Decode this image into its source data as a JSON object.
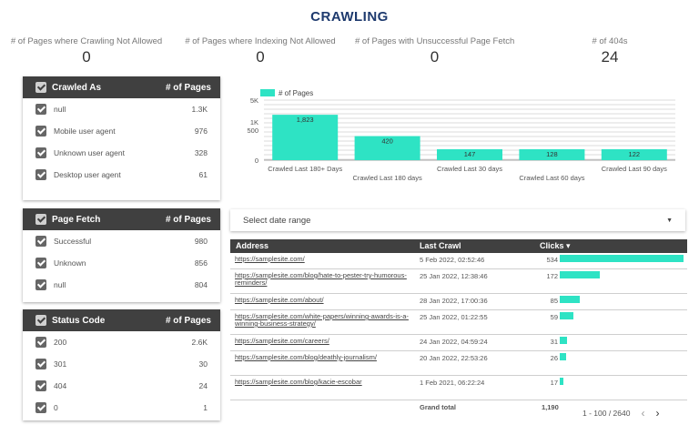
{
  "page": {
    "title": "CRAWLING"
  },
  "kpis": [
    {
      "label": "# of Pages where Crawling Not Allowed",
      "value": "0"
    },
    {
      "label": "# of Pages where Indexing Not Allowed",
      "value": "0"
    },
    {
      "label": "# of Pages with Unsuccessful Page Fetch",
      "value": "0"
    },
    {
      "label": "# of 404s",
      "value": "24"
    }
  ],
  "crawled_as": {
    "title": "Crawled As",
    "count_header": "# of Pages",
    "items": [
      {
        "label": "null",
        "count": "1.3K"
      },
      {
        "label": "Mobile user agent",
        "count": "976"
      },
      {
        "label": "Unknown user agent",
        "count": "328"
      },
      {
        "label": "Desktop user agent",
        "count": "61"
      }
    ]
  },
  "page_fetch": {
    "title": "Page Fetch",
    "count_header": "# of Pages",
    "items": [
      {
        "label": "Successful",
        "count": "980"
      },
      {
        "label": "Unknown",
        "count": "856"
      },
      {
        "label": "null",
        "count": "804"
      }
    ]
  },
  "status_code": {
    "title": "Status Code",
    "count_header": "# of Pages",
    "items": [
      {
        "label": "200",
        "count": "2.6K"
      },
      {
        "label": "301",
        "count": "30"
      },
      {
        "label": "404",
        "count": "24"
      },
      {
        "label": "0",
        "count": "1"
      }
    ]
  },
  "chart_data": {
    "type": "bar",
    "series": [
      {
        "name": "# of Pages",
        "values": [
          1823,
          420,
          147,
          128,
          122
        ]
      }
    ],
    "categories": [
      "Crawled Last 180+ Days",
      "Crawled Last 180 days",
      "Crawled Last 30 days",
      "Crawled Last 60 days",
      "Crawled Last 90 days"
    ],
    "data_labels": [
      "1,823",
      "420",
      "147",
      "128",
      "122"
    ],
    "y_ticks": [
      "5K",
      "1K",
      "500",
      "0"
    ],
    "color": "#2ee3c4",
    "legend": "top-left",
    "grid": true
  },
  "date_range": {
    "label": "Select date range"
  },
  "table": {
    "headers": {
      "address": "Address",
      "last_crawl": "Last Crawl",
      "clicks": "Clicks ▾"
    },
    "rows": [
      {
        "address": "https://samplesite.com/",
        "last_crawl": "5 Feb 2022, 02:52:46",
        "clicks": "534",
        "value": 534
      },
      {
        "address": "https://samplesite.com/blog/hate-to-pester-try-humorous-reminders/",
        "last_crawl": "25 Jan 2022, 12:38:46",
        "clicks": "172",
        "value": 172
      },
      {
        "address": "https://samplesite.com/about/",
        "last_crawl": "28 Jan 2022, 17:00:36",
        "clicks": "85",
        "value": 85
      },
      {
        "address": "https://samplesite.com/white-papers/winning-awards-is-a-winning-business-strategy/",
        "last_crawl": "25 Jan 2022, 01:22:55",
        "clicks": "59",
        "value": 59
      },
      {
        "address": "https://samplesite.com/careers/",
        "last_crawl": "24 Jan 2022, 04:59:24",
        "clicks": "31",
        "value": 31
      },
      {
        "address": "https://samplesite.com/blog/deathly-journalism/",
        "last_crawl": "20 Jan 2022, 22:53:26",
        "clicks": "26",
        "value": 26
      },
      {
        "address": "https://samplesite.com/blog/kacie-escobar",
        "last_crawl": "1 Feb 2021, 06:22:24",
        "clicks": "17",
        "value": 17
      }
    ],
    "grand_total_label": "Grand total",
    "grand_total": "1,190",
    "bar_color": "#2ee3c4"
  },
  "pager": {
    "range": "1 - 100 / 2640",
    "prev": "‹",
    "next": "›"
  }
}
